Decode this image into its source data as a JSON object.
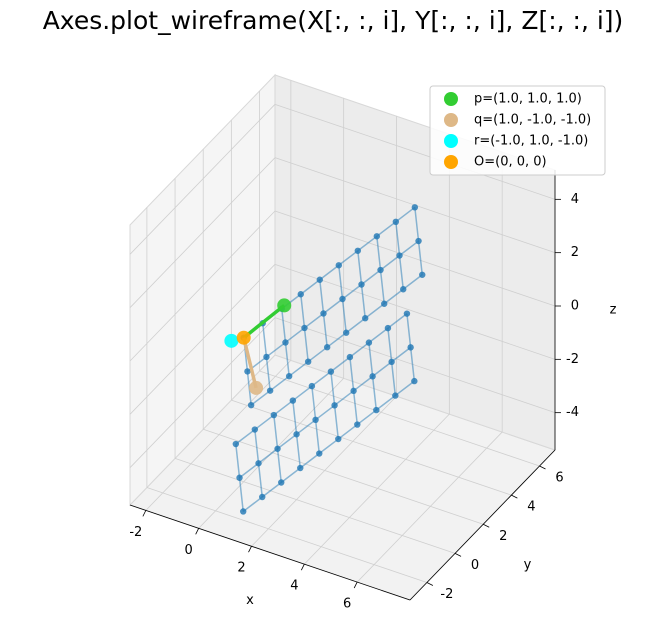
{
  "chart_data": {
    "type": "wireframe3d",
    "title": "Axes.plot_wireframe(X[:, :, i], Y[:, :, i], Z[:, :, i])",
    "xlabel": "x",
    "ylabel": "y",
    "zlabel": "z",
    "xlim": [
      -2.6,
      8.0
    ],
    "ylim": [
      -3.2,
      7.1
    ],
    "zlim": [
      -5.4,
      5.1
    ],
    "xticks": [
      -2,
      0,
      2,
      4,
      6
    ],
    "yticks": [
      -2,
      0,
      2,
      4,
      6
    ],
    "zticks": [
      -4,
      -2,
      0,
      2,
      4
    ],
    "grid": true,
    "legend": "upper right",
    "wireframe": {
      "color": "#1f77b4",
      "X": [
        [
          [
            0,
            0.4,
            0.8,
            1.2,
            1.6,
            2,
            2.4,
            2.8,
            3.2,
            3.6
          ],
          [
            0.3,
            0.7,
            1.1,
            1.5,
            1.9,
            2.3,
            2.7,
            3.1,
            3.5,
            3.9
          ],
          [
            0.6,
            1,
            1.4,
            1.8,
            2.2,
            2.6,
            3,
            3.4,
            3.8,
            4.2
          ]
        ],
        [
          [
            0.5,
            0.9,
            1.3,
            1.7,
            2.1,
            2.5,
            2.9,
            3.3,
            3.7,
            4.1
          ],
          [
            0.8,
            1.2,
            1.6,
            2,
            2.4,
            2.8,
            3.2,
            3.6,
            4,
            4.4
          ],
          [
            1.1,
            1.5,
            1.9,
            2.3,
            2.7,
            3.1,
            3.5,
            3.9,
            4.3,
            4.7
          ]
        ]
      ],
      "Y": [
        [
          [
            0,
            0.6,
            1.2,
            1.8,
            2.4,
            3,
            3.6,
            4.2,
            4.8,
            5.4
          ],
          [
            -0.3,
            0.3,
            0.9,
            1.5,
            2.1,
            2.7,
            3.3,
            3.9,
            4.5,
            5.1
          ],
          [
            -0.6,
            0,
            0.6,
            1.2,
            1.8,
            2.4,
            3,
            3.6,
            4.2,
            4.8
          ]
        ],
        [
          [
            -1.5,
            -0.9,
            -0.3,
            0.3,
            0.9,
            1.5,
            2.1,
            2.7,
            3.3,
            3.9
          ],
          [
            -1.8,
            -1.2,
            -0.6,
            0,
            0.6,
            1.2,
            1.8,
            2.4,
            3,
            3.6
          ],
          [
            -2.1,
            -1.5,
            -0.9,
            -0.3,
            0.3,
            0.9,
            1.5,
            2.1,
            2.7,
            3.3
          ]
        ]
      ],
      "Z": [
        [
          [
            0,
            0.35,
            0.7,
            1.05,
            1.4,
            1.75,
            2.1,
            2.45,
            2.8,
            3.15
          ],
          [
            -1,
            -0.65,
            -0.3,
            0.05,
            0.4,
            0.75,
            1.1,
            1.45,
            1.8,
            2.15
          ],
          [
            -2,
            -1.65,
            -1.3,
            -0.95,
            -0.6,
            -0.25,
            0.1,
            0.45,
            0.8,
            1.15
          ]
        ],
        [
          [
            -3,
            -2.65,
            -2.3,
            -1.95,
            -1.6,
            -1.25,
            -0.9,
            -0.55,
            -0.2,
            0.15
          ],
          [
            -4,
            -3.65,
            -3.3,
            -2.95,
            -2.6,
            -2.25,
            -1.9,
            -1.55,
            -1.2,
            -0.85
          ],
          [
            -5,
            -4.65,
            -4.3,
            -3.95,
            -3.6,
            -3.25,
            -2.9,
            -2.55,
            -2.2,
            -1.85
          ]
        ]
      ]
    },
    "series": [
      {
        "name": "p=(1.0, 1.0, 1.0)",
        "color": "#32cd32",
        "x": 1,
        "y": 1,
        "z": 1
      },
      {
        "name": "q=(1.0, -1.0, -1.0)",
        "color": "#deb887",
        "x": 1,
        "y": -1,
        "z": -1
      },
      {
        "name": "r=(-1.0, 1.0, -1.0)",
        "color": "#00ffff",
        "x": -1,
        "y": 1,
        "z": -1
      },
      {
        "name": "O=(0, 0, 0)",
        "color": "#ffa500",
        "x": 0,
        "y": 0,
        "z": 0
      }
    ]
  }
}
